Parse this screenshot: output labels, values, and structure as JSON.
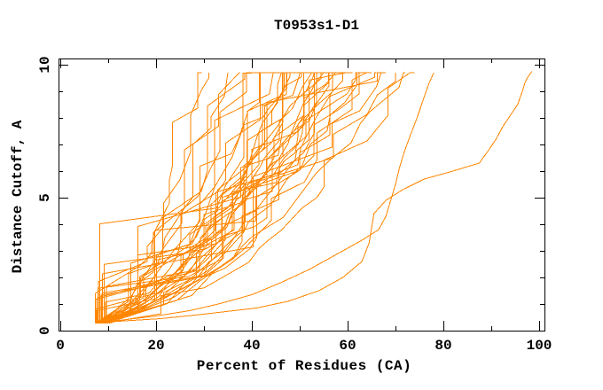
{
  "figure": {
    "background": "#ffffff",
    "text_color": "#000000"
  },
  "chart_data": {
    "type": "line",
    "title": "T0953s1-D1",
    "xlabel": "Percent of Residues (CA)",
    "ylabel": "Distance Cutoff, A",
    "xlim": [
      0,
      101.5
    ],
    "ylim": [
      0,
      10.2
    ],
    "x_major_ticks": [
      0,
      20,
      40,
      60,
      80,
      100
    ],
    "x_minor_ticks": [
      10,
      30,
      50,
      70,
      90
    ],
    "y_major_ticks": [
      0,
      5,
      10
    ],
    "y_minor_ticks": [
      1,
      2,
      3,
      4,
      6,
      7,
      8,
      9
    ],
    "grid": false,
    "legend": null,
    "axis_color": "#000000",
    "line_color": "#ff8600",
    "curve_start_y": 0.28,
    "curve_top_y": 9.7,
    "series": [
      {
        "start_x": 7.3,
        "top_x": 29.5,
        "shape": 0.55
      },
      {
        "start_x": 8.0,
        "top_x": 31.0,
        "shape": 0.62
      },
      {
        "start_x": 7.6,
        "top_x": 35.0,
        "shape": 0.5
      },
      {
        "start_x": 8.4,
        "top_x": 37.5,
        "shape": 0.68
      },
      {
        "start_x": 7.4,
        "top_x": 38.5,
        "shape": 0.58
      },
      {
        "start_x": 9.0,
        "top_x": 40.0,
        "shape": 0.75
      },
      {
        "start_x": 7.8,
        "top_x": 42.0,
        "shape": 0.52
      },
      {
        "start_x": 8.8,
        "top_x": 44.0,
        "shape": 0.65
      },
      {
        "start_x": 7.3,
        "top_x": 45.0,
        "shape": 0.6
      },
      {
        "start_x": 9.4,
        "top_x": 46.0,
        "shape": 0.72
      },
      {
        "start_x": 7.5,
        "top_x": 47.0,
        "shape": 0.48
      },
      {
        "start_x": 8.2,
        "top_x": 48.0,
        "shape": 0.66
      },
      {
        "start_x": 10.2,
        "top_x": 48.5,
        "shape": 0.58
      },
      {
        "start_x": 7.9,
        "top_x": 49.0,
        "shape": 0.54
      },
      {
        "start_x": 8.6,
        "top_x": 50.0,
        "shape": 0.7
      },
      {
        "start_x": 7.4,
        "top_x": 50.5,
        "shape": 0.6
      },
      {
        "start_x": 9.8,
        "top_x": 51.0,
        "shape": 0.5
      },
      {
        "start_x": 8.1,
        "top_x": 52.0,
        "shape": 0.64
      },
      {
        "start_x": 7.6,
        "top_x": 52.5,
        "shape": 0.56
      },
      {
        "start_x": 9.2,
        "top_x": 53.0,
        "shape": 0.74
      },
      {
        "start_x": 7.8,
        "top_x": 54.0,
        "shape": 0.52
      },
      {
        "start_x": 8.9,
        "top_x": 54.5,
        "shape": 0.62
      },
      {
        "start_x": 7.5,
        "top_x": 55.0,
        "shape": 0.58
      },
      {
        "start_x": 10.5,
        "top_x": 55.5,
        "shape": 0.68
      },
      {
        "start_x": 8.3,
        "top_x": 56.0,
        "shape": 0.5
      },
      {
        "start_x": 7.7,
        "top_x": 57.0,
        "shape": 0.66
      },
      {
        "start_x": 9.1,
        "top_x": 57.5,
        "shape": 0.54
      },
      {
        "start_x": 8.0,
        "top_x": 58.0,
        "shape": 0.72
      },
      {
        "start_x": 7.4,
        "top_x": 59.0,
        "shape": 0.6
      },
      {
        "start_x": 8.7,
        "top_x": 60.0,
        "shape": 0.56
      },
      {
        "start_x": 9.6,
        "top_x": 60.5,
        "shape": 0.64
      },
      {
        "start_x": 7.8,
        "top_x": 61.0,
        "shape": 0.5
      },
      {
        "start_x": 8.4,
        "top_x": 62.0,
        "shape": 0.7
      },
      {
        "start_x": 7.6,
        "top_x": 63.0,
        "shape": 0.58
      },
      {
        "start_x": 9.0,
        "top_x": 64.0,
        "shape": 0.52
      },
      {
        "start_x": 8.2,
        "top_x": 65.0,
        "shape": 0.66
      },
      {
        "start_x": 7.5,
        "top_x": 66.0,
        "shape": 0.6
      },
      {
        "start_x": 8.8,
        "top_x": 67.0,
        "shape": 0.55
      },
      {
        "start_x": 7.9,
        "top_x": 68.0,
        "shape": 0.65
      },
      {
        "start_x": 8.5,
        "top_x": 70.0,
        "shape": 0.58
      },
      {
        "start_x": 7.6,
        "top_x": 72.0,
        "shape": 0.62
      },
      {
        "start_x": 9.3,
        "top_x": 74.0,
        "shape": 0.55
      },
      {
        "points": [
          [
            7.4,
            0.28
          ],
          [
            14,
            0.42
          ],
          [
            20,
            0.55
          ],
          [
            27,
            0.75
          ],
          [
            33,
            1.0
          ],
          [
            40,
            1.35
          ],
          [
            46,
            1.8
          ],
          [
            52,
            2.3
          ],
          [
            58,
            2.9
          ],
          [
            63,
            3.4
          ],
          [
            66.5,
            3.8
          ],
          [
            68,
            4.3
          ],
          [
            69,
            4.9
          ],
          [
            70,
            5.5
          ],
          [
            70.8,
            6.1
          ],
          [
            71.8,
            6.7
          ],
          [
            73,
            7.3
          ],
          [
            74.5,
            8.0
          ],
          [
            76,
            8.8
          ],
          [
            77,
            9.3
          ],
          [
            78,
            9.7
          ]
        ]
      },
      {
        "points": [
          [
            7.5,
            0.28
          ],
          [
            12,
            0.35
          ],
          [
            21,
            0.45
          ],
          [
            30,
            0.62
          ],
          [
            41,
            0.85
          ],
          [
            47.5,
            1.1
          ],
          [
            54,
            1.5
          ],
          [
            59,
            2.0
          ],
          [
            63,
            2.6
          ],
          [
            64.5,
            3.3
          ],
          [
            65.5,
            4.4
          ],
          [
            68,
            4.9
          ],
          [
            71.5,
            5.3
          ],
          [
            76,
            5.7
          ],
          [
            82,
            6.0
          ],
          [
            87.5,
            6.3
          ],
          [
            89.5,
            6.8
          ],
          [
            91,
            7.2
          ],
          [
            92.5,
            7.7
          ],
          [
            94,
            8.1
          ],
          [
            95.5,
            8.5
          ],
          [
            96.5,
            9.0
          ],
          [
            97,
            9.3
          ],
          [
            97.5,
            9.5
          ],
          [
            98.5,
            9.75
          ]
        ]
      }
    ]
  }
}
